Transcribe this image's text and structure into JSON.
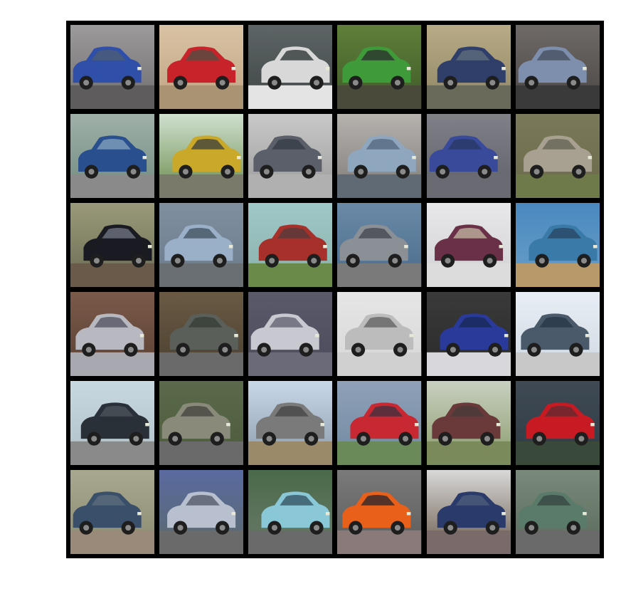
{
  "grid": {
    "rows": 6,
    "cols": 6,
    "tiles": [
      {
        "subject": "car",
        "bg_top": "#9c9a9b",
        "bg_bottom": "#6f6d6e",
        "ground": "#5e5c5d",
        "body": "#2f4fa8",
        "window": "#4a5a78"
      },
      {
        "subject": "car",
        "bg_top": "#d9c2a4",
        "bg_bottom": "#bfa483",
        "ground": "#a99372",
        "body": "#c8232b",
        "window": "#5a4a42"
      },
      {
        "subject": "car",
        "bg_top": "#5e6566",
        "bg_bottom": "#3e4545",
        "ground": "#e4e4e4",
        "body": "#d8d8d8",
        "window": "#3a3f40"
      },
      {
        "subject": "car",
        "bg_top": "#5f7f3a",
        "bg_bottom": "#3f5a28",
        "ground": "#4a4a3a",
        "body": "#3f9a3a",
        "window": "#2f3a2f"
      },
      {
        "subject": "car",
        "bg_top": "#b8ab86",
        "bg_bottom": "#8f8565",
        "ground": "#6a6a5a",
        "body": "#2f3f6a",
        "window": "#5a6a7a"
      },
      {
        "subject": "car",
        "bg_top": "#6f6a68",
        "bg_bottom": "#4a4644",
        "ground": "#3a3a3a",
        "body": "#7e8fae",
        "window": "#4a5566"
      },
      {
        "subject": "car",
        "bg_top": "#9fb0a8",
        "bg_bottom": "#6f8a7e",
        "ground": "#8a8a8a",
        "body": "#2a4f8f",
        "window": "#7a9ab8"
      },
      {
        "subject": "car",
        "bg_top": "#cfe0cf",
        "bg_bottom": "#6a8a4a",
        "ground": "#7a7a6a",
        "body": "#c9a82a",
        "window": "#4a4a3a"
      },
      {
        "subject": "car",
        "bg_top": "#c9c9c9",
        "bg_bottom": "#9a9a9a",
        "ground": "#b0b0b0",
        "body": "#5a5f6a",
        "window": "#3a3f48"
      },
      {
        "subject": "car",
        "bg_top": "#b6b2ae",
        "bg_bottom": "#7e7a78",
        "ground": "#5f6a74",
        "body": "#8fa6bf",
        "window": "#5a6f84"
      },
      {
        "subject": "car",
        "bg_top": "#7f8088",
        "bg_bottom": "#5f6068",
        "ground": "#6a6a72",
        "body": "#3a4a9a",
        "window": "#2a3a6a"
      },
      {
        "subject": "car",
        "bg_top": "#7a7a5a",
        "bg_bottom": "#6a6a4a",
        "ground": "#6f7a4a",
        "body": "#a8a090",
        "window": "#6a6a5a"
      },
      {
        "subject": "car",
        "bg_top": "#9a9a7a",
        "bg_bottom": "#6a6a52",
        "ground": "#6a5a4a",
        "body": "#1a1a22",
        "window": "#6a6f7a"
      },
      {
        "subject": "car",
        "bg_top": "#7f8f9f",
        "bg_bottom": "#6a7a8a",
        "ground": "#6a6f74",
        "body": "#9ab0c8",
        "window": "#4a5a6a"
      },
      {
        "subject": "car",
        "bg_top": "#9fc8c8",
        "bg_bottom": "#8ab0a8",
        "ground": "#6a8a4a",
        "body": "#a8302a",
        "window": "#5a3a3a"
      },
      {
        "subject": "car",
        "bg_top": "#6a8aa8",
        "bg_bottom": "#4a6a8a",
        "ground": "#7a7a7a",
        "body": "#8a9096",
        "window": "#4a4f55"
      },
      {
        "subject": "car",
        "bg_top": "#e8e8ea",
        "bg_bottom": "#d0d0d4",
        "ground": "#dcdcdc",
        "body": "#6a3048",
        "window": "#b8a898"
      },
      {
        "subject": "car",
        "bg_top": "#4a88bf",
        "bg_bottom": "#6aa0c8",
        "ground": "#b89a6a",
        "body": "#3a7aa8",
        "window": "#2a4a6a"
      },
      {
        "subject": "car",
        "bg_top": "#7a5a4a",
        "bg_bottom": "#5a3f32",
        "ground": "#a8a8b0",
        "body": "#b8b8c0",
        "window": "#5a5a6a"
      },
      {
        "subject": "car",
        "bg_top": "#6a5a44",
        "bg_bottom": "#4a3f2f",
        "ground": "#6a6a6a",
        "body": "#5a5f5a",
        "window": "#3a3f3a"
      },
      {
        "subject": "car",
        "bg_top": "#5a5a6a",
        "bg_bottom": "#4a4a5a",
        "ground": "#6a6a78",
        "body": "#c8c8d0",
        "window": "#6a6a7a"
      },
      {
        "subject": "car",
        "bg_top": "#e6e6e6",
        "bg_bottom": "#d6d6d6",
        "ground": "#d0d0d0",
        "body": "#bcbcbc",
        "window": "#6a6a6a"
      },
      {
        "subject": "car",
        "bg_top": "#3a3a3a",
        "bg_bottom": "#2a2a2a",
        "ground": "#d8d8dc",
        "body": "#2a3a9a",
        "window": "#1a2a5a"
      },
      {
        "subject": "car",
        "bg_top": "#e8eef4",
        "bg_bottom": "#cfd8e2",
        "ground": "#c8c8c8",
        "body": "#4a5a6a",
        "window": "#2a3a4a"
      },
      {
        "subject": "car",
        "bg_top": "#c8d8e0",
        "bg_bottom": "#b0c0c8",
        "ground": "#8a8a8a",
        "body": "#2a3038",
        "window": "#4a5058"
      },
      {
        "subject": "car",
        "bg_top": "#5a6a4a",
        "bg_bottom": "#4a5a3a",
        "ground": "#6a6a6a",
        "body": "#8a8a7a",
        "window": "#4a4a44"
      },
      {
        "subject": "car",
        "bg_top": "#c8d8e8",
        "bg_bottom": "#8a9aaa",
        "ground": "#9a8a6a",
        "body": "#7a7a7a",
        "window": "#4a4a4a"
      },
      {
        "subject": "car",
        "bg_top": "#8fa0b8",
        "bg_bottom": "#6f8aa0",
        "ground": "#6a8a5a",
        "body": "#c82832",
        "window": "#4a3040"
      },
      {
        "subject": "car",
        "bg_top": "#c8d0c0",
        "bg_bottom": "#8a9a6a",
        "ground": "#7a8a5a",
        "body": "#6a3a3a",
        "window": "#4a3a3a"
      },
      {
        "subject": "car",
        "bg_top": "#3f4a55",
        "bg_bottom": "#2f3a44",
        "ground": "#3a4a3a",
        "body": "#c81a22",
        "window": "#6a2a30"
      },
      {
        "subject": "car",
        "bg_top": "#a8a890",
        "bg_bottom": "#8a8a70",
        "ground": "#9a8a7a",
        "body": "#3a4f6a",
        "window": "#5a6a7a"
      },
      {
        "subject": "car",
        "bg_top": "#5a6aa0",
        "bg_bottom": "#5a6a6a",
        "ground": "#6a6a6a",
        "body": "#b8c0d0",
        "window": "#5a6070"
      },
      {
        "subject": "car",
        "bg_top": "#4a6a4a",
        "bg_bottom": "#6a7a6a",
        "ground": "#6a6a6a",
        "body": "#8ac8d8",
        "window": "#3a5a6a"
      },
      {
        "subject": "car",
        "bg_top": "#7a7a7a",
        "bg_bottom": "#5a5a5a",
        "ground": "#8a7a7a",
        "body": "#e8601a",
        "window": "#3a2a2a"
      },
      {
        "subject": "car",
        "bg_top": "#d8d8d8",
        "bg_bottom": "#6a5a4a",
        "ground": "#7a6a6a",
        "body": "#2a3a6a",
        "window": "#4a5a7a"
      },
      {
        "subject": "car",
        "bg_top": "#7a8a7a",
        "bg_bottom": "#5a6a5a",
        "ground": "#6a6a6a",
        "body": "#5a7a6a",
        "window": "#3a4a44"
      }
    ]
  }
}
